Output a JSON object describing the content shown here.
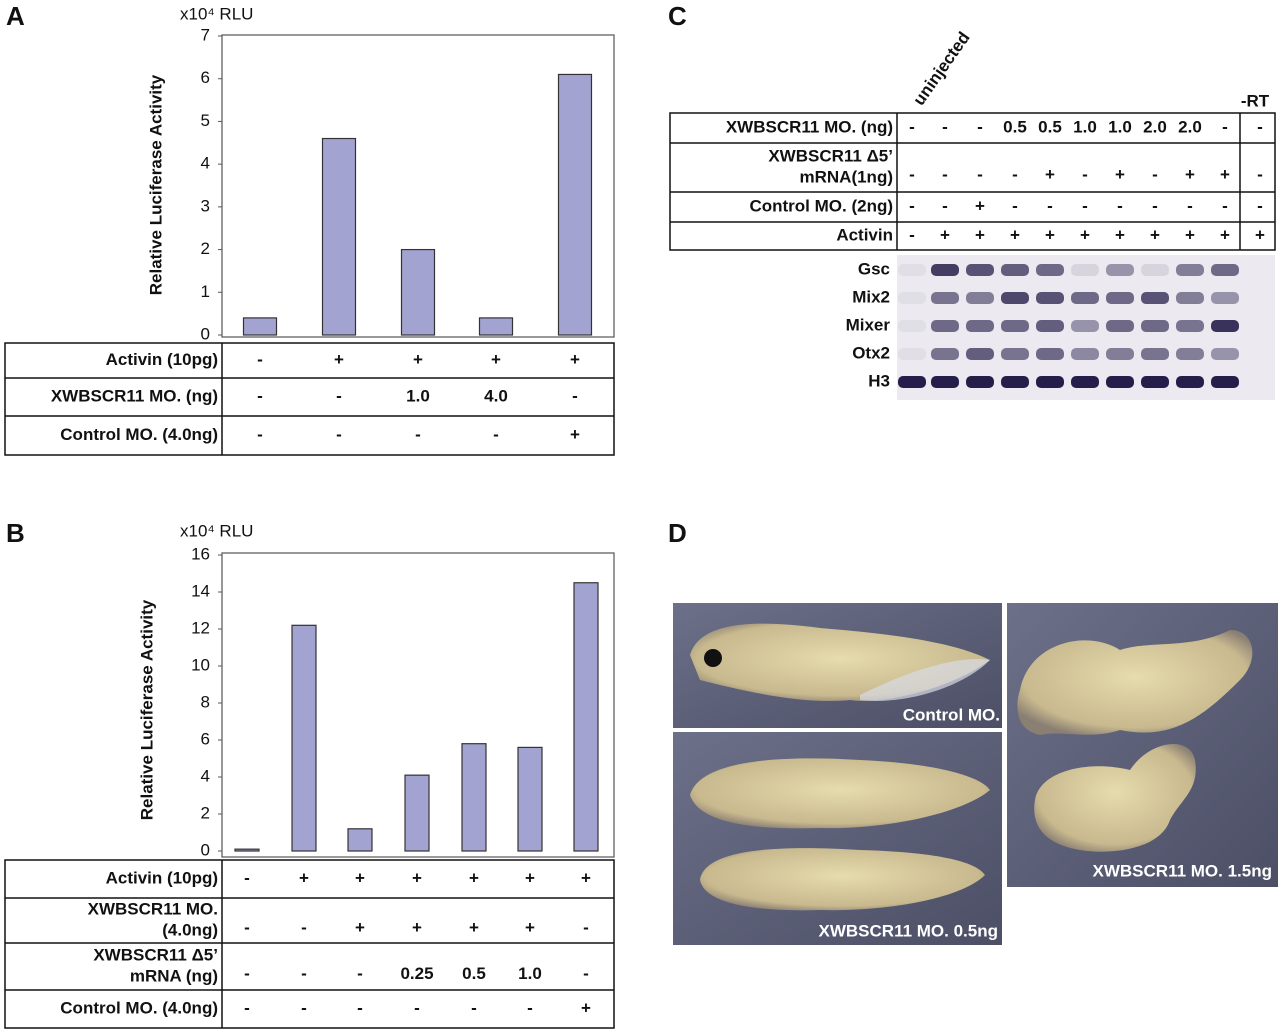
{
  "panel_labels": [
    "A",
    "B",
    "C",
    "D"
  ],
  "chart_data": [
    {
      "type": "bar",
      "unit_label": "x10⁴ RLU",
      "y_label": "Relative Luciferase Activity",
      "values": [
        0.4,
        4.6,
        2.0,
        0.4,
        6.1
      ],
      "color": "#a3a3d1",
      "ylim": [
        0,
        7
      ],
      "yticks": [
        0,
        1,
        2,
        3,
        4,
        5,
        6,
        7
      ],
      "condition_table": {
        "rows": [
          {
            "label": [
              "Activin (10pg)"
            ],
            "cells": [
              "-",
              "+",
              "+",
              "+",
              "+"
            ]
          },
          {
            "label": [
              "XWBSCR11 MO. (ng)"
            ],
            "cells": [
              "-",
              "-",
              "1.0",
              "4.0",
              "-"
            ]
          },
          {
            "label": [
              "Control MO. (4.0ng)"
            ],
            "cells": [
              "-",
              "-",
              "-",
              "-",
              "+"
            ]
          }
        ]
      }
    },
    {
      "type": "bar",
      "unit_label": "x10⁴ RLU",
      "y_label": "Relative Luciferase Activity",
      "values": [
        0.1,
        12.2,
        1.2,
        4.1,
        5.8,
        5.6,
        14.5
      ],
      "color": "#a3a3d1",
      "ylim": [
        0,
        16
      ],
      "yticks": [
        0,
        2,
        4,
        6,
        8,
        10,
        12,
        14,
        16
      ],
      "condition_table": {
        "rows": [
          {
            "label": [
              "Activin (10pg)"
            ],
            "cells": [
              "-",
              "+",
              "+",
              "+",
              "+",
              "+",
              "+"
            ]
          },
          {
            "label": [
              "XWBSCR11 MO.",
              "(4.0ng)"
            ],
            "cells": [
              "-",
              "-",
              "+",
              "+",
              "+",
              "+",
              "-"
            ]
          },
          {
            "label": [
              "XWBSCR11 Δ5’",
              "mRNA (ng)"
            ],
            "cells": [
              "-",
              "-",
              "-",
              "0.25",
              "0.5",
              "1.0",
              "-"
            ]
          },
          {
            "label": [
              "Control MO. (4.0ng)"
            ],
            "cells": [
              "-",
              "-",
              "-",
              "-",
              "-",
              "-",
              "+"
            ]
          }
        ]
      }
    }
  ],
  "panel_c": {
    "column_headers": {
      "uninjected": "uninjected",
      "rt": "-RT"
    },
    "condition_table": {
      "rows": [
        {
          "label": [
            "XWBSCR11 MO.  (ng)"
          ],
          "cells": [
            "-",
            "-",
            "-",
            "0.5",
            "0.5",
            "1.0",
            "1.0",
            "2.0",
            "2.0",
            "-",
            "-"
          ]
        },
        {
          "label": [
            "XWBSCR11 Δ5’",
            "mRNA(1ng)"
          ],
          "cells": [
            "-",
            "-",
            "-",
            "-",
            "+",
            "-",
            "+",
            "-",
            "+",
            "+",
            "-"
          ]
        },
        {
          "label": [
            "Control MO. (2ng)"
          ],
          "cells": [
            "-",
            "-",
            "+",
            "-",
            "-",
            "-",
            "-",
            "-",
            "-",
            "-",
            "-"
          ]
        },
        {
          "label": [
            "Activin"
          ],
          "cells": [
            "-",
            "+",
            "+",
            "+",
            "+",
            "+",
            "+",
            "+",
            "+",
            "+",
            "+"
          ]
        }
      ]
    },
    "gel_rows": [
      "Gsc",
      "Mix2",
      "Mixer",
      "Otx2",
      "H3"
    ]
  },
  "panel_d": {
    "photos": [
      "Control MO.",
      "XWBSCR11 MO. 0.5ng",
      "XWBSCR11 MO. 1.5ng"
    ]
  }
}
